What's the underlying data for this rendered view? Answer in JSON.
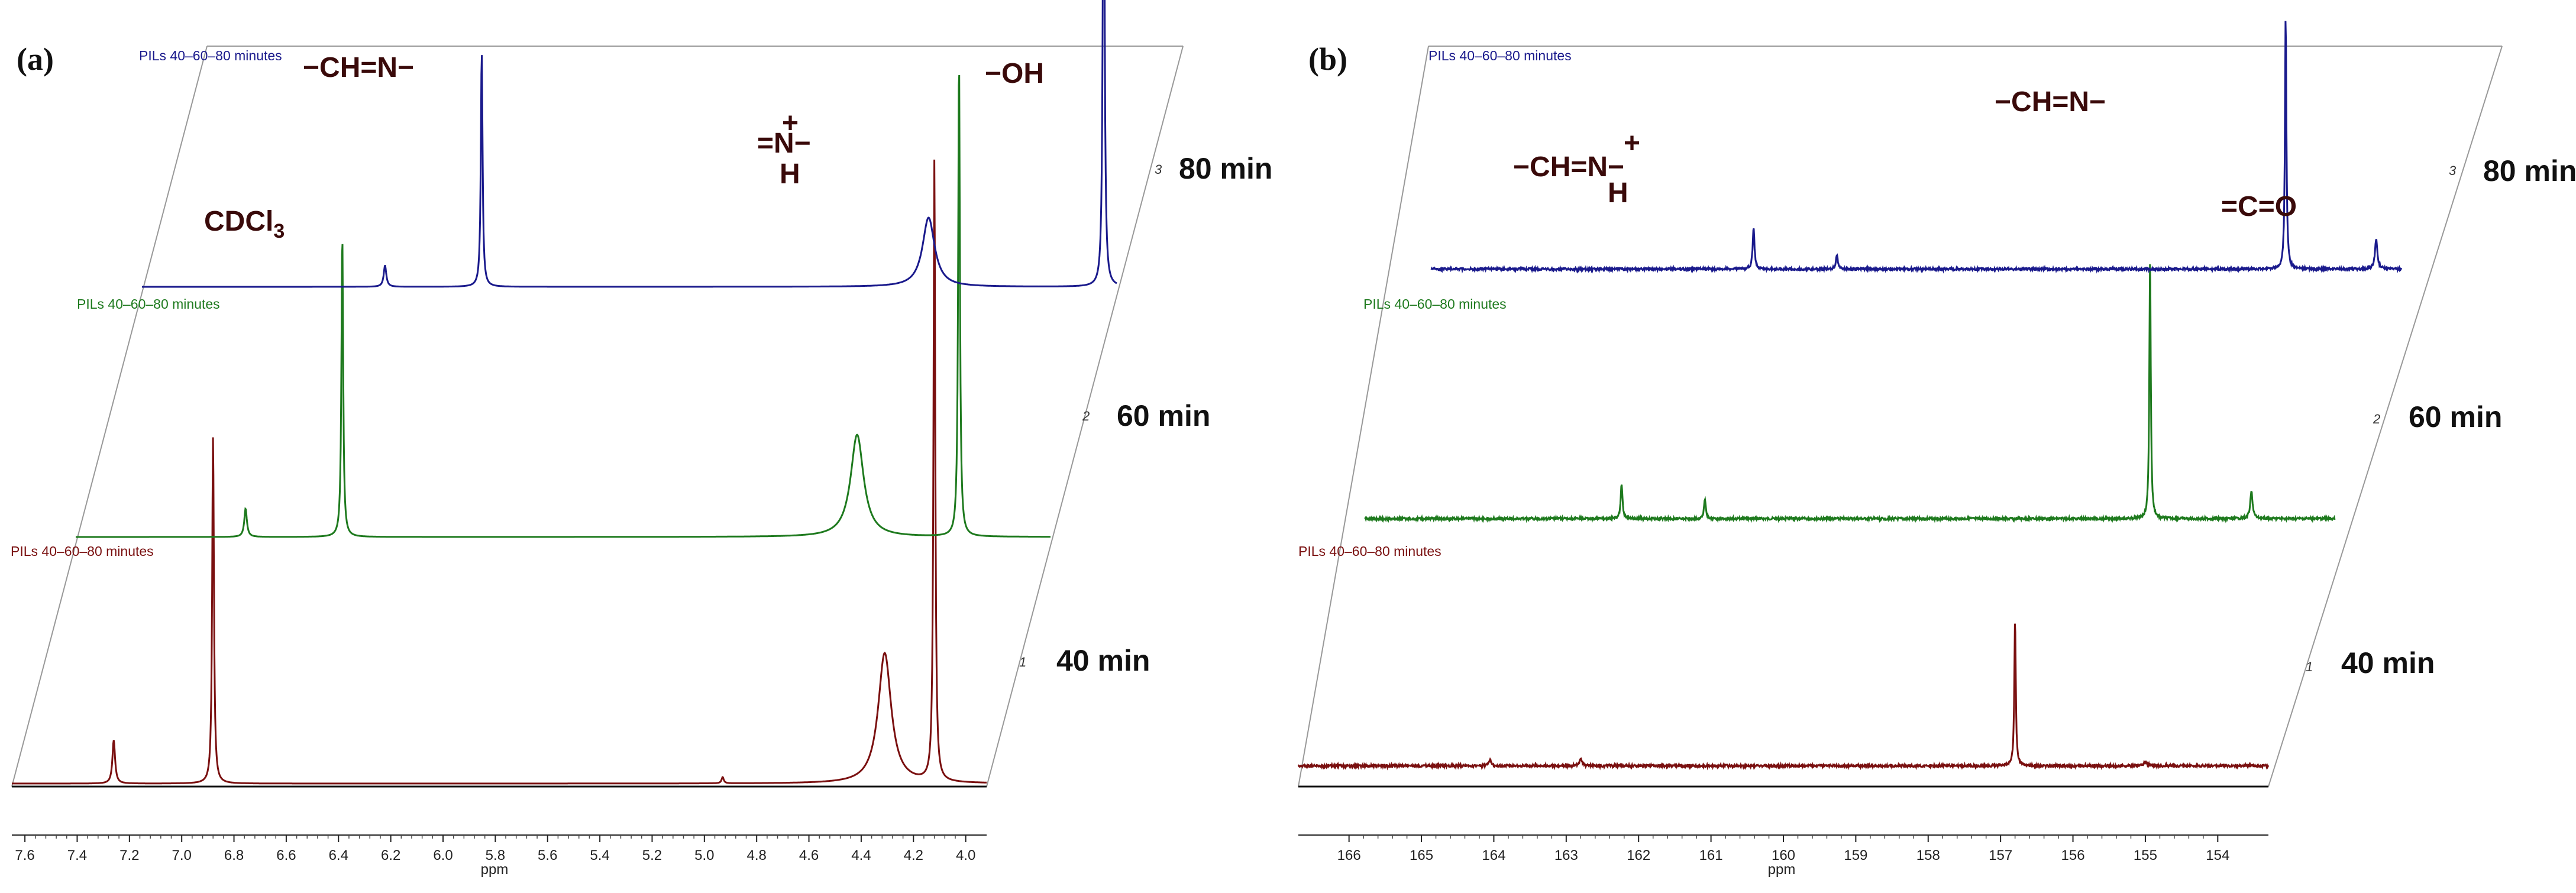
{
  "chart_data": [
    {
      "panel": "(a)",
      "type": "line",
      "subtype": "stacked NMR spectra",
      "xlabel": "ppm",
      "xlim": [
        7.65,
        3.92
      ],
      "x_ticks": [
        "7.6",
        "7.4",
        "7.2",
        "7.0",
        "6.8",
        "6.6",
        "6.4",
        "6.2",
        "6.0",
        "5.8",
        "5.6",
        "5.4",
        "5.2",
        "5.0",
        "4.8",
        "4.6",
        "4.4",
        "4.2",
        "4.0"
      ],
      "series": [
        {
          "name": "40 min",
          "depth_label": "1",
          "title": "PILs 40–60–80 minutes",
          "color": "#7a1010",
          "peaks": [
            {
              "x": 7.26,
              "h": 0.07
            },
            {
              "x": 6.88,
              "h": 0.56
            },
            {
              "x": 4.93,
              "h": 0.01
            },
            {
              "x": 4.31,
              "h": 0.21
            },
            {
              "x": 4.12,
              "h": 1.0
            }
          ],
          "width": [
            0.006,
            0.004,
            0.005,
            0.03,
            0.004
          ]
        },
        {
          "name": "60 min",
          "depth_label": "2",
          "title": "PILs 40–60–80 minutes",
          "color": "#1e7a1e",
          "peaks": [
            {
              "x": 7.0,
              "h": 0.05
            },
            {
              "x": 6.63,
              "h": 0.53
            },
            {
              "x": 4.66,
              "h": 0.18
            },
            {
              "x": 4.27,
              "h": 0.84
            }
          ],
          "width": [
            0.006,
            0.004,
            0.03,
            0.004
          ]
        },
        {
          "name": "80 min",
          "depth_label": "3",
          "title": "PILs 40–60–80 minutes",
          "color": "#1a1a8c",
          "peaks": [
            {
              "x": 6.72,
              "h": 0.04
            },
            {
              "x": 6.35,
              "h": 0.44
            },
            {
              "x": 4.64,
              "h": 0.13
            },
            {
              "x": 3.97,
              "h": 1.0
            }
          ],
          "width": [
            0.006,
            0.004,
            0.028,
            0.004
          ]
        }
      ],
      "annotations": {
        "cdcl3": {
          "text": "CDCl",
          "sub": "3"
        },
        "imine": "−CH=N−",
        "iminium_top": "=N−",
        "plus": "+",
        "h_letter": "H",
        "hydroxyl": "−OH"
      }
    },
    {
      "panel": "(b)",
      "type": "line",
      "subtype": "stacked NMR spectra",
      "xlabel": "ppm",
      "xlim": [
        166.7,
        153.3
      ],
      "x_ticks": [
        "166",
        "165",
        "164",
        "163",
        "162",
        "161",
        "160",
        "159",
        "158",
        "157",
        "156",
        "155",
        "154"
      ],
      "series": [
        {
          "name": "40 min",
          "depth_label": "1",
          "title": "PILs 40–60–80 minutes",
          "color": "#7a1010",
          "peaks": [
            {
              "x": 164.05,
              "h": 0.015
            },
            {
              "x": 162.8,
              "h": 0.02
            },
            {
              "x": 156.8,
              "h": 0.38
            },
            {
              "x": 155.0,
              "h": 0.01
            }
          ],
          "width": [
            0.02,
            0.02,
            0.012,
            0.03
          ]
        },
        {
          "name": "60 min",
          "depth_label": "2",
          "title": "PILs 40–60–80 minutes",
          "color": "#1e7a1e",
          "peaks": [
            {
              "x": 163.15,
              "h": 0.09
            },
            {
              "x": 162.0,
              "h": 0.05
            },
            {
              "x": 155.85,
              "h": 0.68
            },
            {
              "x": 154.45,
              "h": 0.07
            }
          ],
          "width": [
            0.015,
            0.015,
            0.012,
            0.02
          ]
        },
        {
          "name": "80 min",
          "depth_label": "3",
          "title": "PILs 40–60–80 minutes",
          "color": "#1a1a8c",
          "peaks": [
            {
              "x": 162.25,
              "h": 0.11
            },
            {
              "x": 161.1,
              "h": 0.04
            },
            {
              "x": 154.9,
              "h": 0.68
            },
            {
              "x": 153.65,
              "h": 0.08
            }
          ],
          "width": [
            0.015,
            0.015,
            0.012,
            0.02
          ]
        }
      ],
      "annotations": {
        "iminium": "−CH=N−",
        "plus": "+",
        "h_letter": "H",
        "imine": "−CH=N−",
        "carbonyl": "=C=O"
      }
    }
  ]
}
